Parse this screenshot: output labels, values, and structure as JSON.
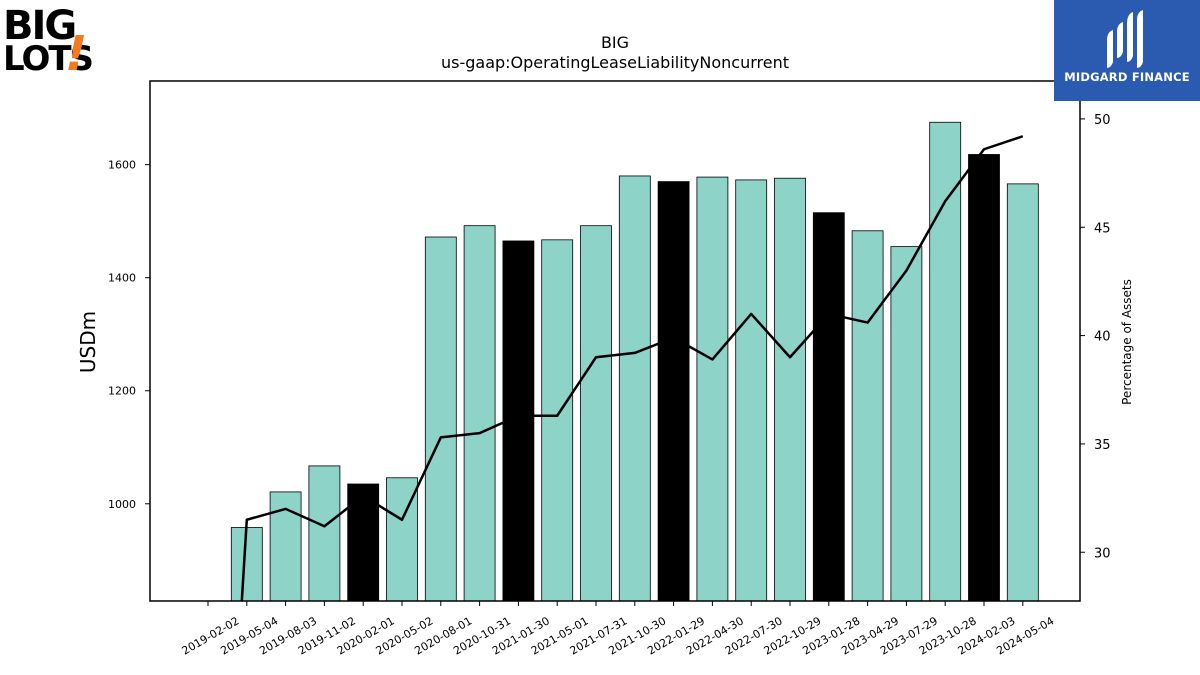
{
  "branding": {
    "left_logo_line1": "BIG",
    "left_logo_line2": "LOTS",
    "left_logo_mark": "!",
    "right_logo_text": "MIDGARD FINANCE",
    "right_logo_icon": "midgard-monogram-icon",
    "left_logo_accent": "#f47a20",
    "right_logo_bg": "#2b5bb0"
  },
  "chart_data": {
    "type": "bar",
    "title": "BIG",
    "subtitle": "us-gaap:OperatingLeaseLiabilityNoncurrent",
    "ylabel": "USDm",
    "y2label": "Percentage of Assets",
    "ylim": [
      828,
      1748
    ],
    "y2lim": [
      27.75,
      51.75
    ],
    "yticks": [
      1000,
      1200,
      1400,
      1600
    ],
    "y2ticks": [
      30,
      35,
      40,
      45,
      50
    ],
    "grid": false,
    "categories": [
      "2019-02-02",
      "2019-05-04",
      "2019-08-03",
      "2019-11-02",
      "2020-02-01",
      "2020-05-02",
      "2020-08-01",
      "2020-10-31",
      "2021-01-30",
      "2021-05-01",
      "2021-07-31",
      "2021-10-30",
      "2022-01-29",
      "2022-04-30",
      "2022-07-30",
      "2022-10-29",
      "2023-01-28",
      "2023-04-29",
      "2023-07-29",
      "2023-10-28",
      "2024-02-03",
      "2024-05-04"
    ],
    "series": [
      {
        "kind": "bar",
        "values": [
          null,
          958,
          1021,
          1067,
          1035,
          1046,
          1472,
          1492,
          1465,
          1467,
          1492,
          1580,
          1570,
          1578,
          1573,
          1576,
          1515,
          1483,
          1455,
          1675,
          1618,
          1566
        ],
        "highlight": [
          false,
          false,
          false,
          false,
          true,
          false,
          false,
          false,
          true,
          false,
          false,
          false,
          true,
          false,
          false,
          false,
          true,
          false,
          false,
          false,
          true,
          false
        ],
        "color": "#8dd3c7",
        "highlight_color": "#000000"
      },
      {
        "kind": "line",
        "axis": "right",
        "values": [
          null,
          31.5,
          32.0,
          31.2,
          32.6,
          31.5,
          35.3,
          35.5,
          36.3,
          36.3,
          39.0,
          39.2,
          39.9,
          38.9,
          41.0,
          39.0,
          41.0,
          40.6,
          43.0,
          46.2,
          48.6,
          49.2
        ],
        "start_below_axis": true,
        "color": "#000000"
      }
    ]
  }
}
